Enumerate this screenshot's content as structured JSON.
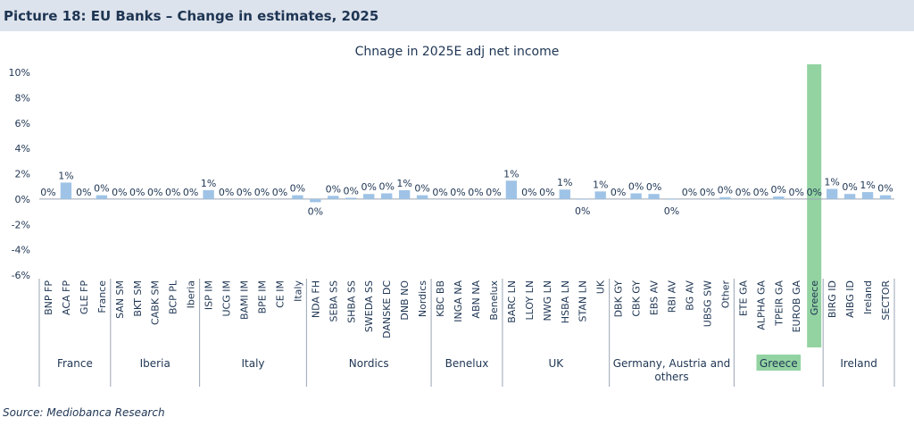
{
  "header": {
    "title": "Picture 18: EU Banks – Change in estimates, 2025"
  },
  "source": "Source: Mediobanca Research",
  "chart_data": {
    "type": "bar",
    "title": "Chnage in 2025E adj net income",
    "xlabel": "",
    "ylabel": "",
    "ylim": [
      -6,
      10
    ],
    "ytick_labels": [
      "10%",
      "8%",
      "6%",
      "4%",
      "2%",
      "0%",
      "-2%",
      "-4%",
      "-6%"
    ],
    "ytick_values": [
      10,
      8,
      6,
      4,
      2,
      0,
      -2,
      -4,
      -6
    ],
    "grid": false,
    "categories": [
      "BNP FP",
      "ACA FP",
      "GLE FP",
      "France",
      "SAN SM",
      "BKT SM",
      "CABK SM",
      "BCP PL",
      "Iberia",
      "ISP IM",
      "UCG IM",
      "BAMI IM",
      "BPE IM",
      "CE IM",
      "Italy",
      "NDA FH",
      "SEBA SS",
      "SHBA SS",
      "SWEDA SS",
      "DANSKE DC",
      "DNB NO",
      "Nordics",
      "KBC BB",
      "INGA NA",
      "ABN NA",
      "Benelux",
      "BARC LN",
      "LLOY LN",
      "NWG LN",
      "HSBA LN",
      "STAN LN",
      "UK",
      "DBK GY",
      "CBK GY",
      "EBS AV",
      "RBI AV",
      "BG AV",
      "UBSG SW",
      "Other",
      "ETE GA",
      "ALPHA GA",
      "TPEIR GA",
      "EUROB GA",
      "Greece",
      "BIRG ID",
      "AIBG ID",
      "Ireland",
      "SECTOR"
    ],
    "values": [
      0.0,
      1.3,
      0.0,
      0.3,
      0.0,
      0.0,
      0.0,
      0.0,
      0.0,
      0.7,
      0.0,
      0.0,
      0.0,
      0.0,
      0.3,
      -0.25,
      0.25,
      0.1,
      0.4,
      0.45,
      0.7,
      0.3,
      0.0,
      0.0,
      0.0,
      0.0,
      1.45,
      0.0,
      0.0,
      0.75,
      -0.05,
      0.6,
      0.0,
      0.45,
      0.4,
      -0.05,
      0.0,
      0.0,
      0.15,
      0.0,
      0.0,
      0.2,
      0.0,
      0.0,
      0.8,
      0.4,
      0.55,
      0.3
    ],
    "data_labels": [
      "0%",
      "1%",
      "0%",
      "0%",
      "0%",
      "0%",
      "0%",
      "0%",
      "0%",
      "1%",
      "0%",
      "0%",
      "0%",
      "0%",
      "0%",
      "0%",
      "0%",
      "0%",
      "0%",
      "0%",
      "1%",
      "0%",
      "0%",
      "0%",
      "0%",
      "0%",
      "1%",
      "0%",
      "0%",
      "1%",
      "0%",
      "1%",
      "0%",
      "0%",
      "0%",
      "0%",
      "0%",
      "0%",
      "0%",
      "0%",
      "0%",
      "0%",
      "0%",
      "0%",
      "1%",
      "0%",
      "1%",
      "0%"
    ],
    "groups": [
      {
        "name": "France",
        "count": 4
      },
      {
        "name": "Iberia",
        "count": 5
      },
      {
        "name": "Italy",
        "count": 6
      },
      {
        "name": "Nordics",
        "count": 7
      },
      {
        "name": "Benelux",
        "count": 4
      },
      {
        "name": "UK",
        "count": 6
      },
      {
        "name": "Germany, Austria and others",
        "count": 7
      },
      {
        "name": "Greece",
        "count": 5
      },
      {
        "name": "Ireland",
        "count": 4
      }
    ],
    "highlight_category": "Greece",
    "highlight_group": "Greece",
    "colors": {
      "bar": "#9fc3e6",
      "highlight": "#93d3a2",
      "text": "#1e3553",
      "axis": "#9aa5b4"
    }
  }
}
